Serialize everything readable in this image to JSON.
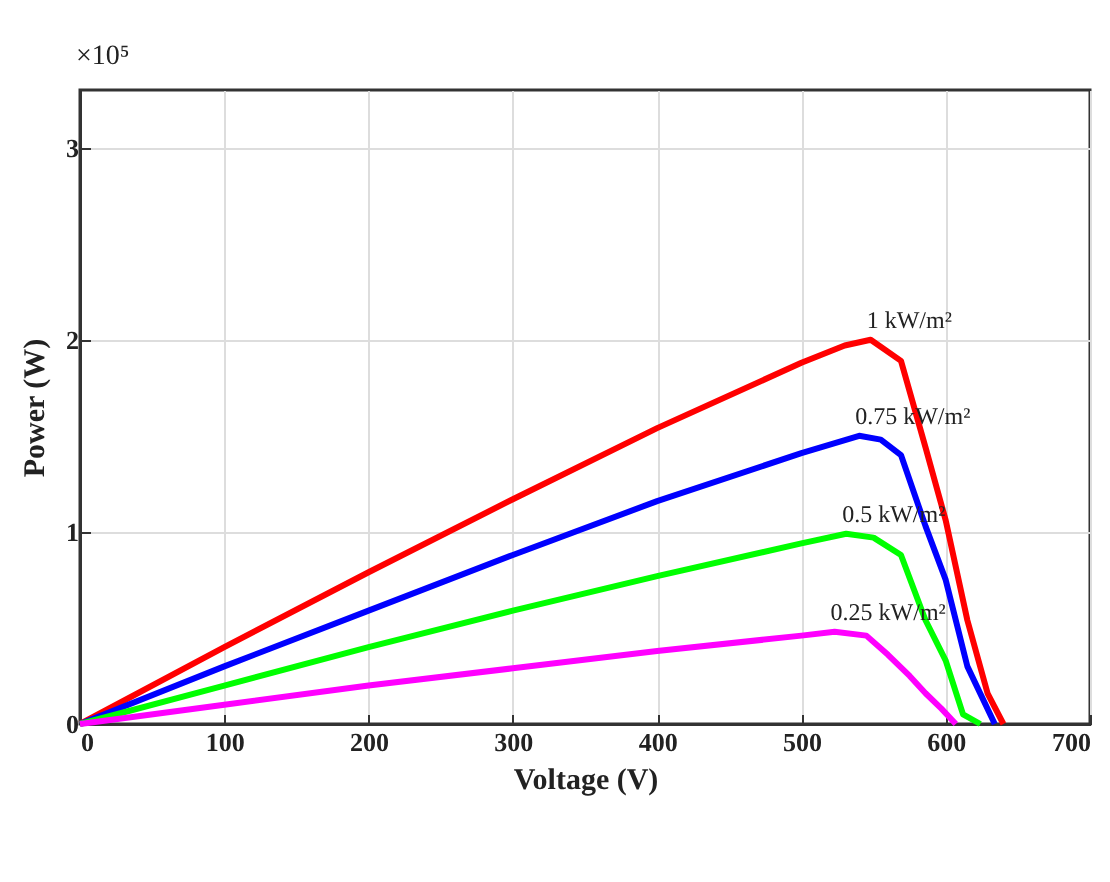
{
  "chart_data": {
    "type": "line",
    "xlabel": "Voltage (V)",
    "ylabel": "Power (W)",
    "annotations": [
      "×10⁵"
    ],
    "series": [
      {
        "name": "1 kW/m²",
        "color": "#ff0000",
        "x": [
          0,
          100,
          200,
          300,
          400,
          500,
          530,
          548,
          569,
          586,
          600,
          615,
          629,
          640
        ],
        "values": [
          0,
          0.4,
          0.79,
          1.17,
          1.54,
          1.88,
          1.97,
          2.0,
          1.89,
          1.44,
          1.06,
          0.54,
          0.16,
          0
        ]
      },
      {
        "name": "0.75 kW/m²",
        "color": "#0000ff",
        "x": [
          0,
          100,
          200,
          300,
          400,
          500,
          540,
          555,
          569,
          586,
          600,
          615,
          634
        ],
        "values": [
          0,
          0.3,
          0.59,
          0.88,
          1.16,
          1.41,
          1.5,
          1.48,
          1.4,
          1.03,
          0.75,
          0.3,
          0
        ]
      },
      {
        "name": "0.5 kW/m²",
        "color": "#00ff00",
        "x": [
          0,
          100,
          200,
          300,
          400,
          500,
          531,
          550,
          569,
          586,
          600,
          612,
          624
        ],
        "values": [
          0,
          0.2,
          0.4,
          0.59,
          0.77,
          0.94,
          0.99,
          0.97,
          0.88,
          0.54,
          0.33,
          0.05,
          0
        ]
      },
      {
        "name": "0.25 kW/m²",
        "color": "#ff00ff",
        "x": [
          0,
          100,
          200,
          300,
          400,
          500,
          523,
          545,
          560,
          575,
          586,
          597,
          607
        ],
        "values": [
          0,
          0.1,
          0.2,
          0.29,
          0.38,
          0.46,
          0.48,
          0.46,
          0.36,
          0.25,
          0.16,
          0.08,
          0
        ]
      }
    ],
    "xlim": [
      0,
      700
    ],
    "xticks": [
      0,
      100,
      200,
      300,
      400,
      500,
      600,
      700
    ],
    "ylim": [
      0,
      3.3
    ],
    "yticks": [
      0,
      1,
      2,
      3
    ],
    "grid": true,
    "legend": false,
    "marker": "none",
    "line_style": "solid"
  }
}
